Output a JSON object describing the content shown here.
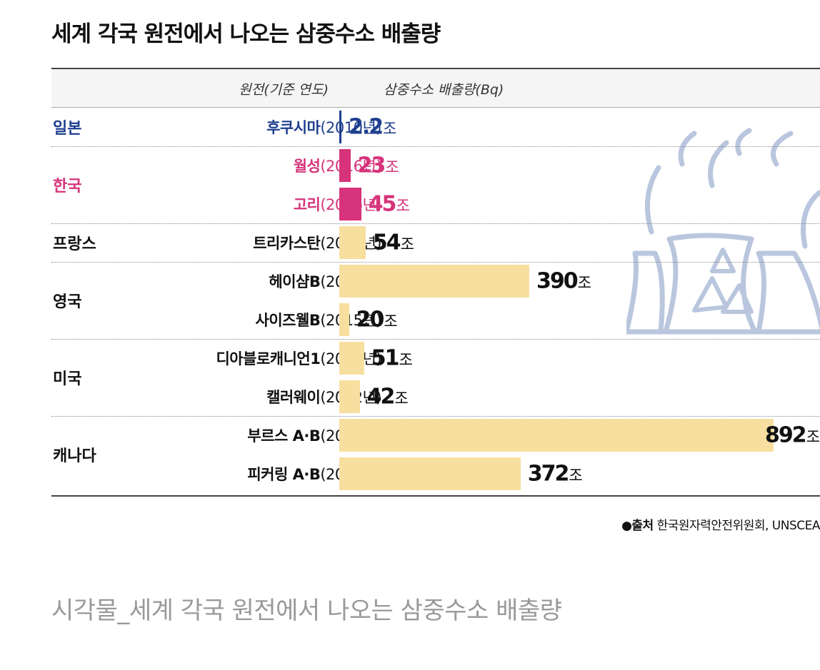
{
  "title": "세계 각국 원전에서 나오는 삼중수소 배출량",
  "header": {
    "plant_col": "원전(기준 연도)",
    "value_col": "삼중수소 배출량(Bq)"
  },
  "unit": "조",
  "colors": {
    "japan": "#1e3f8f",
    "korea": "#d6337a",
    "other": "#f7dfa0",
    "icon": "#b9c6de"
  },
  "chart_data": {
    "type": "bar",
    "orientation": "horizontal",
    "title": "세계 각국 원전에서 나오는 삼중수소 배출량",
    "xlabel": "삼중수소 배출량(Bq)",
    "ylabel": "원전(기준 연도)",
    "value_unit": "조",
    "groups": [
      {
        "country": "일본",
        "color_key": "japan",
        "plants": [
          {
            "name": "후쿠시마",
            "year": "(2010년)",
            "value": 2.2,
            "label": "2.2"
          }
        ]
      },
      {
        "country": "한국",
        "color_key": "korea",
        "plants": [
          {
            "name": "월성",
            "year": "(2016년)",
            "value": 23,
            "label": "23"
          },
          {
            "name": "고리",
            "year": "(2016년)",
            "value": 45,
            "label": "45"
          }
        ]
      },
      {
        "country": "프랑스",
        "color_key": "other",
        "plants": [
          {
            "name": "트리카스탄",
            "year": "(2015년)",
            "value": 54,
            "label": "54"
          }
        ]
      },
      {
        "country": "영국",
        "color_key": "other",
        "plants": [
          {
            "name": "헤이샴B",
            "year": "(2015년)",
            "value": 390,
            "label": "390"
          },
          {
            "name": "사이즈웰B",
            "year": "(2015년)",
            "value": 20,
            "label": "20"
          }
        ]
      },
      {
        "country": "미국",
        "color_key": "other",
        "plants": [
          {
            "name": "디아블로캐니언1",
            "year": "(2002년)",
            "value": 51,
            "label": "51"
          },
          {
            "name": "캘러웨이",
            "year": "(2002년)",
            "value": 42,
            "label": "42"
          }
        ]
      },
      {
        "country": "캐나다",
        "color_key": "other",
        "plants": [
          {
            "name": "부르스 A·B",
            "year": "(2015년)",
            "value": 892,
            "label": "892"
          },
          {
            "name": "피커링 A·B",
            "year": "(2015년)",
            "value": 372,
            "label": "372"
          }
        ]
      }
    ],
    "grid": false,
    "legend": "none"
  },
  "source": {
    "label": "●출처",
    "text": " 한국원자력안전위원회, UNSCEA"
  },
  "caption": "시각물_세계 각국 원전에서 나오는 삼중수소 배출량",
  "icon_name": "nuclear-power-plant-icon"
}
